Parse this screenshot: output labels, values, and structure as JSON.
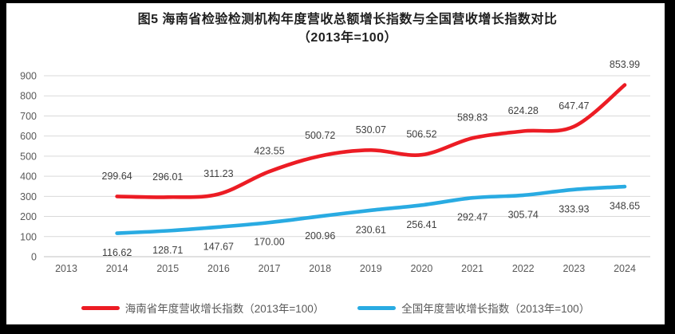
{
  "title": {
    "line1": "图5  海南省检验检测机构年度营收总额增长指数与全国营收增长指数对比",
    "line2": "（2013年=100）"
  },
  "chart_data": {
    "type": "line",
    "title": "图5 海南省检验检测机构年度营收总额增长指数与全国营收增长指数对比（2013年=100）",
    "categories": [
      "2013",
      "2014",
      "2015",
      "2016",
      "2017",
      "2018",
      "2019",
      "2020",
      "2021",
      "2022",
      "2023",
      "2024"
    ],
    "ylim": [
      0,
      900
    ],
    "ytick_interval": 100,
    "ytick_labels": [
      "0",
      "100",
      "200",
      "300",
      "400",
      "500",
      "600",
      "700",
      "800",
      "900"
    ],
    "grid": "horizontal",
    "legend_position": "bottom",
    "series": [
      {
        "name": "海南省年度营收增长指数（2013年=100）",
        "color": "#EC1C24",
        "label_position": "above",
        "values": [
          null,
          299.64,
          296.01,
          311.23,
          423.55,
          500.72,
          530.07,
          506.52,
          589.83,
          624.28,
          647.47,
          853.99
        ],
        "labels": [
          null,
          "299.64",
          "296.01",
          "311.23",
          "423.55",
          "500.72",
          "530.07",
          "506.52",
          "589.83",
          "624.28",
          "647.47",
          "853.99"
        ]
      },
      {
        "name": "全国年度营收增长指数（2013年=100）",
        "color": "#29ABE2",
        "label_position": "below",
        "values": [
          null,
          116.62,
          128.71,
          147.67,
          170.0,
          200.96,
          230.61,
          256.41,
          292.47,
          305.74,
          333.93,
          348.65
        ],
        "labels": [
          null,
          "116.62",
          "128.71",
          "147.67",
          "170.00",
          "200.96",
          "230.61",
          "256.41",
          "292.47",
          "305.74",
          "333.93",
          "348.65"
        ]
      }
    ]
  },
  "colors": {
    "gridline": "#D9D9D9",
    "axis_line": "#C0C0C0",
    "tick_label": "#595959",
    "data_label": "#404040",
    "panel_background": "#FFFFFF",
    "frame_background": "#000000"
  }
}
